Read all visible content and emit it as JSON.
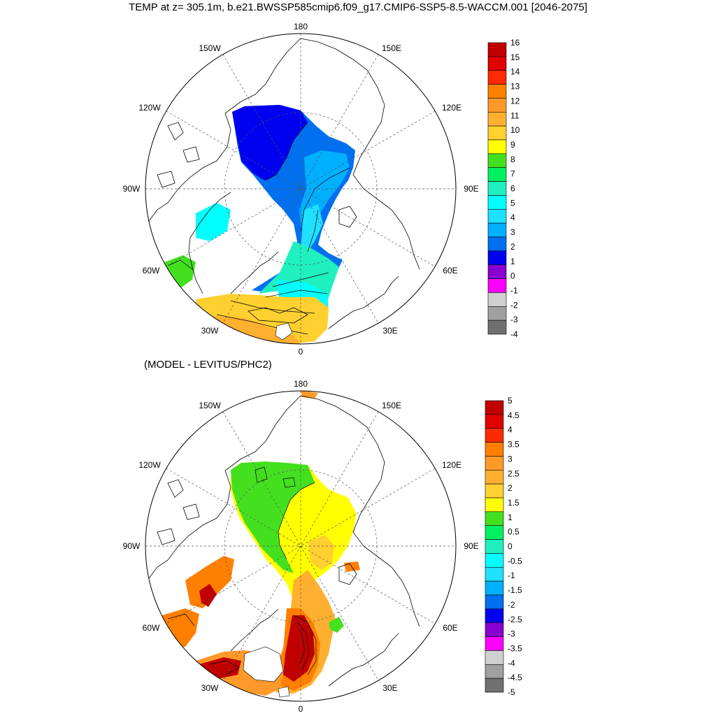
{
  "title": "TEMP at z= 305.1m, b.e21.BWSSP585cmip6.f09_g17.CMIP6-SSP5-8.5-WACCM.001 [2046-2075]",
  "subtitle": "(MODEL - LEVITUS/PHC2)",
  "longitude_labels": {
    "lon180": "180",
    "lon150W": "150W",
    "lon150E": "150E",
    "lon120W": "120W",
    "lon120E": "120E",
    "lon90W": "90W",
    "lon90E": "90E",
    "lon60W": "60W",
    "lon60E": "60E",
    "lon30W": "30W",
    "lon30E": "30E",
    "lon0": "0"
  },
  "top_colorbar": {
    "labels": [
      "16",
      "15",
      "14",
      "13",
      "12",
      "11",
      "10",
      "9",
      "8",
      "7",
      "6",
      "5",
      "4",
      "3",
      "2",
      "1",
      "0",
      "-1",
      "-2",
      "-3",
      "-4"
    ],
    "colors": [
      "#c00000",
      "#e00000",
      "#ff2a00",
      "#ff7f00",
      "#ff9a2a",
      "#ffb030",
      "#ffd030",
      "#ffff00",
      "#44e020",
      "#00f060",
      "#20f0c0",
      "#00ffff",
      "#20e0ff",
      "#00b0ff",
      "#0070f0",
      "#0000f0",
      "#8800d0",
      "#ff00ff",
      "#d0d0d0",
      "#a0a0a0",
      "#707070"
    ]
  },
  "bottom_colorbar": {
    "labels": [
      "5",
      "4.5",
      "4",
      "3.5",
      "3",
      "2.5",
      "2",
      "1.5",
      "1",
      "0.5",
      "0",
      "-0.5",
      "-1",
      "-1.5",
      "-2",
      "-2.5",
      "-3",
      "-3.5",
      "-4",
      "-4.5",
      "-5"
    ],
    "colors": [
      "#c00000",
      "#e00000",
      "#ff2a00",
      "#ff7f00",
      "#ff9a2a",
      "#ffb030",
      "#ffd030",
      "#ffff00",
      "#44e020",
      "#00f060",
      "#20f0c0",
      "#00ffff",
      "#20e0ff",
      "#00b0ff",
      "#0070f0",
      "#0000f0",
      "#8800d0",
      "#ff00ff",
      "#d0d0d0",
      "#a0a0a0",
      "#707070"
    ]
  }
}
